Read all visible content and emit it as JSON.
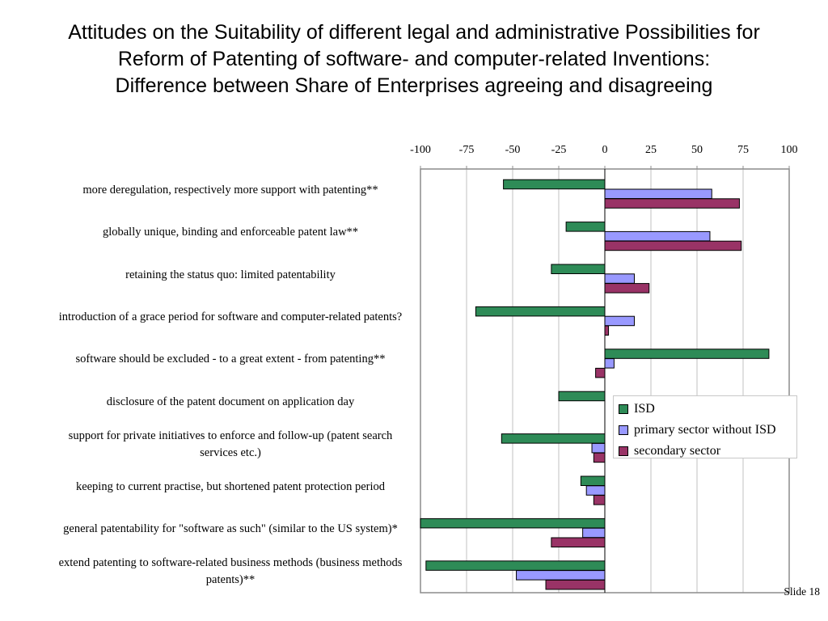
{
  "title_lines": [
    "Attitudes on the Suitability of different legal and administrative Possibilities for",
    "Reform of Patenting of software- and computer-related Inventions:",
    "Difference between Share of Enterprises agreeing and disagreeing"
  ],
  "slide_number": "Slide 18",
  "chart_data": {
    "type": "bar",
    "orientation": "horizontal",
    "title": "Attitudes on the Suitability of different legal and administrative Possibilities for Reform of Patenting of software- and computer-related Inventions: Difference between Share of Enterprises agreeing and disagreeing",
    "xlim": [
      -100,
      100
    ],
    "ticks": [
      "-100",
      "-75",
      "-50",
      "-25",
      "0",
      "25",
      "50",
      "75",
      "100"
    ],
    "grid": true,
    "legend_position": "right-middle",
    "categories": [
      "more deregulation, respectively more support with patenting**",
      "globally unique, binding and enforceable patent law**",
      "retaining the status quo: limited patentability",
      "introduction of a grace period for software and computer-related patents?",
      "software should be excluded - to a great extent - from patenting**",
      "disclosure of the patent document on application day",
      "support for private initiatives to enforce and follow-up (patent search services etc.)",
      "keeping to current practise, but shortened patent protection period",
      "general patentability for \"software as such\" (similar to the US system)*",
      "extend patenting to software-related business methods (business methods patents)**"
    ],
    "series": [
      {
        "name": "ISD",
        "color": "#2e8b57",
        "values": [
          -55,
          -21,
          -29,
          -70,
          89,
          -25,
          -56,
          -13,
          -100,
          -97
        ]
      },
      {
        "name": "primary sector without ISD",
        "color": "#9999ff",
        "values": [
          58,
          57,
          16,
          16,
          5,
          0,
          -7,
          -10,
          -12,
          -48
        ]
      },
      {
        "name": "secondary sector",
        "color": "#993366",
        "values": [
          73,
          74,
          24,
          2,
          -5,
          0,
          -6,
          -6,
          -29,
          -32
        ]
      }
    ]
  }
}
